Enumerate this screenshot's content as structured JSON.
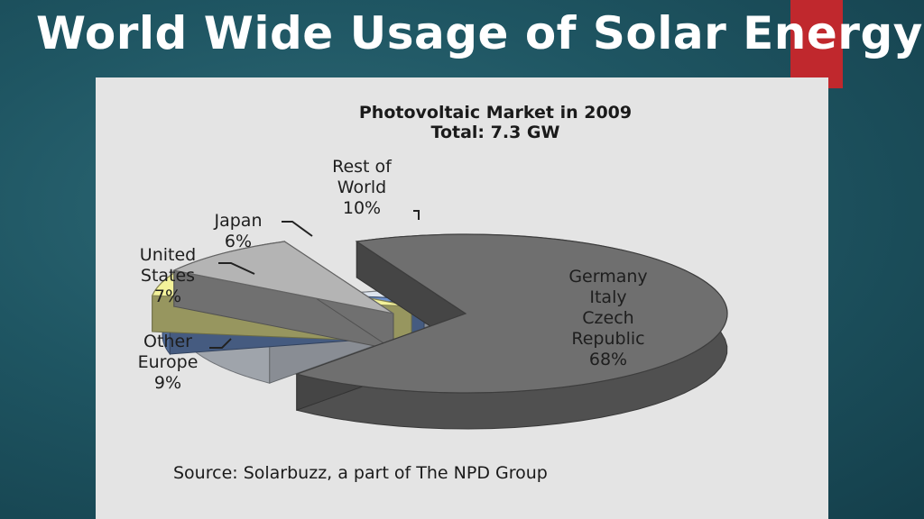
{
  "slide": {
    "title": "World Wide Usage of Solar Energy",
    "accent_color": "#c0282d"
  },
  "chart_data": {
    "type": "pie",
    "title": "Photovoltaic Market in 2009",
    "subtitle": "Total: 7.3 GW",
    "slices": [
      {
        "label": [
          "Germany",
          "Italy",
          "Czech",
          "Republic"
        ],
        "value": 68,
        "value_label": "68%",
        "color": "#6f6f6f"
      },
      {
        "label": [
          "Rest of",
          "World"
        ],
        "value": 10,
        "value_label": "10%",
        "color": "#dde4ee"
      },
      {
        "label": [
          "Japan"
        ],
        "value": 6,
        "value_label": "6%",
        "color": "#6f93cf"
      },
      {
        "label": [
          "United",
          "States"
        ],
        "value": 7,
        "value_label": "7%",
        "color": "#f3f29a"
      },
      {
        "label": [
          "Other",
          "Europe"
        ],
        "value": 9,
        "value_label": "9%",
        "color": "#b4b4b4"
      }
    ],
    "unit": "%",
    "source": "Source: Solarbuzz, a part of The NPD Group"
  }
}
